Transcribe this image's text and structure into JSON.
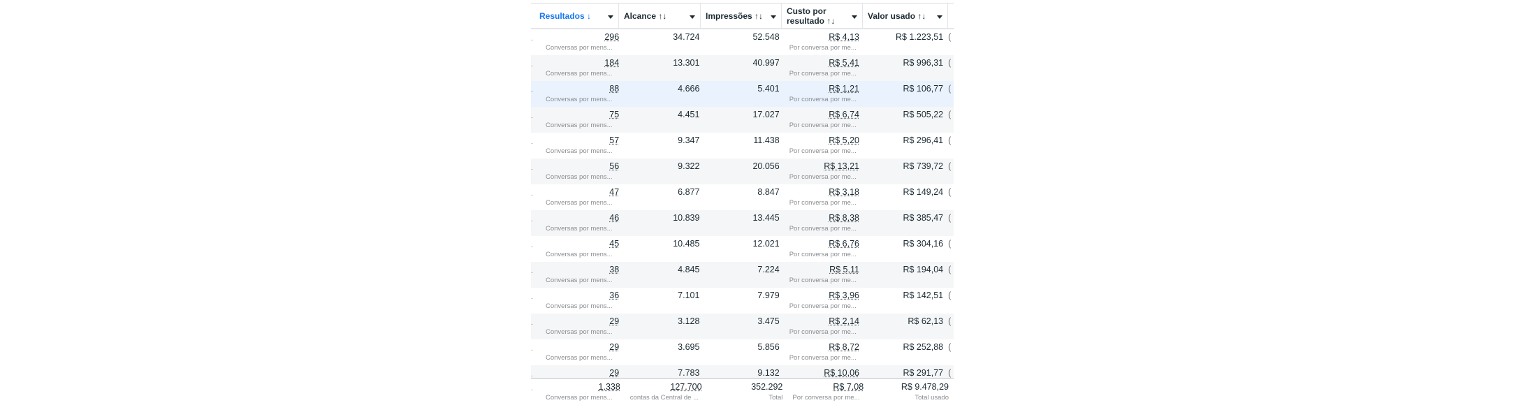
{
  "headers": [
    {
      "label": "Resultados ↓",
      "sorted": true
    },
    {
      "label": "Alcance ↑↓"
    },
    {
      "label": "Impressões ↑↓"
    },
    {
      "label": "Custo por resultado ↑↓"
    },
    {
      "label": "Valor usado ↑↓"
    }
  ],
  "result_sub": "Conversas por mens...",
  "cost_sub": "Por conversa por me...",
  "rows": [
    [
      "296",
      "34.724",
      "52.548",
      "R$ 4,13",
      "R$ 1.223,51"
    ],
    [
      "184",
      "13.301",
      "40.997",
      "R$ 5,41",
      "R$ 996,31"
    ],
    [
      "88",
      "4.666",
      "5.401",
      "R$ 1,21",
      "R$ 106,77"
    ],
    [
      "75",
      "4.451",
      "17.027",
      "R$ 6,74",
      "R$ 505,22"
    ],
    [
      "57",
      "9.347",
      "11.438",
      "R$ 5,20",
      "R$ 296,41"
    ],
    [
      "56",
      "9.322",
      "20.056",
      "R$ 13,21",
      "R$ 739,72"
    ],
    [
      "47",
      "6.877",
      "8.847",
      "R$ 3,18",
      "R$ 149,24"
    ],
    [
      "46",
      "10.839",
      "13.445",
      "R$ 8,38",
      "R$ 385,47"
    ],
    [
      "45",
      "10.485",
      "12.021",
      "R$ 6,76",
      "R$ 304,16"
    ],
    [
      "38",
      "4.845",
      "7.224",
      "R$ 5,11",
      "R$ 194,04"
    ],
    [
      "36",
      "7.101",
      "7.979",
      "R$ 3,96",
      "R$ 142,51"
    ],
    [
      "29",
      "3.128",
      "3.475",
      "R$ 2,14",
      "R$ 62,13"
    ],
    [
      "29",
      "3.695",
      "5.856",
      "R$ 8,72",
      "R$ 252,88"
    ],
    [
      "29",
      "7.783",
      "9.132",
      "R$ 10,06",
      "R$ 291,77"
    ]
  ],
  "total": {
    "values": [
      "1.338",
      "127.700",
      "352.292",
      "R$ 7,08",
      "R$ 9.478,29"
    ],
    "subs": [
      "Conversas por mens...",
      "contas da Central de ...",
      "Total",
      "Por conversa por me...",
      "Total usado"
    ]
  }
}
